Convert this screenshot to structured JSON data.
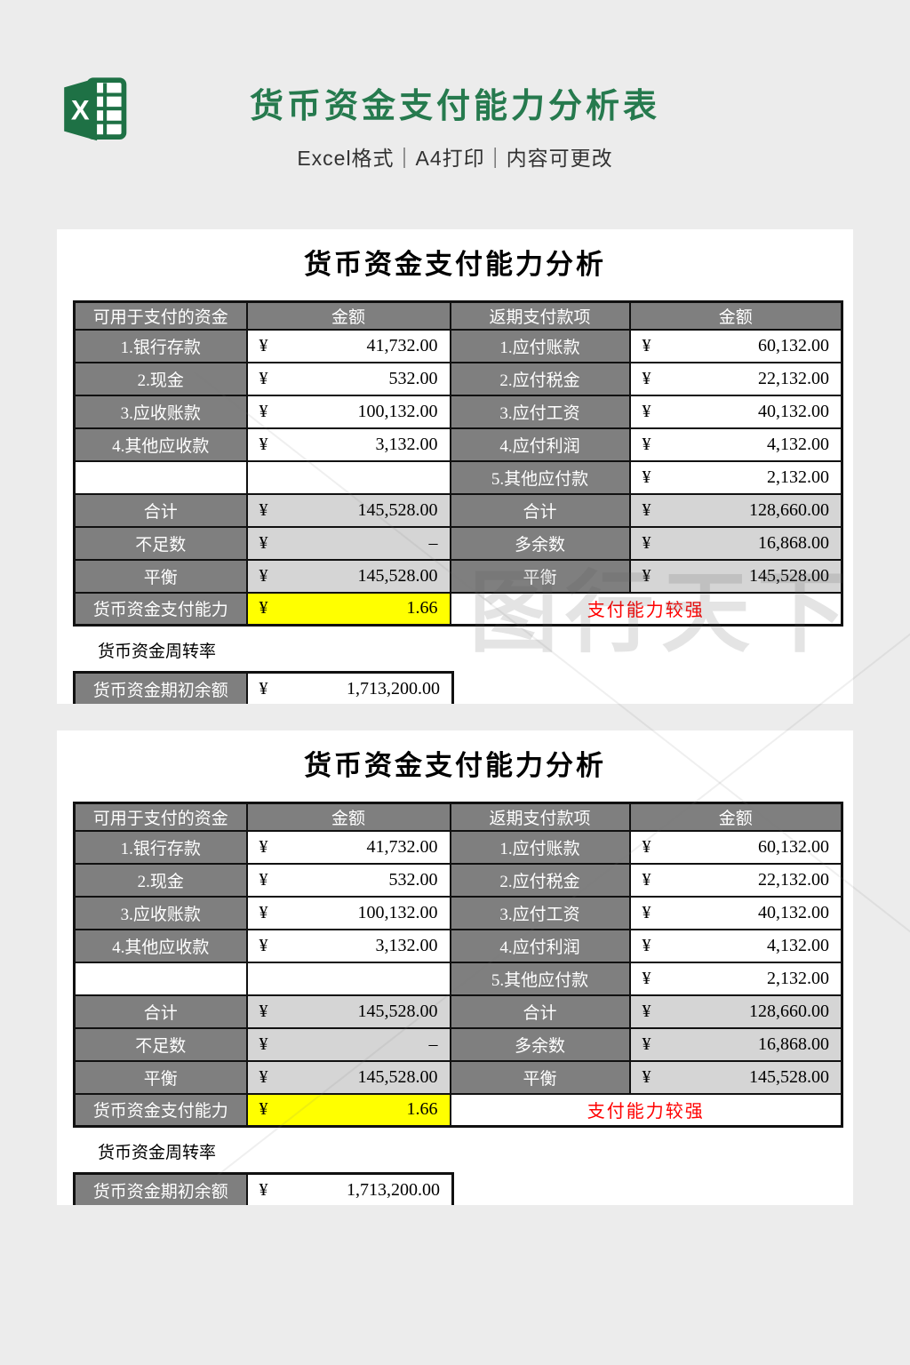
{
  "header": {
    "title": "货币资金支付能力分析表",
    "subtitle": "Excel格式｜A4打印｜内容可更改"
  },
  "watermark": {
    "text": "图行天下"
  },
  "panel": {
    "title": "货币资金支付能力分析",
    "currency": "¥",
    "columns": [
      "可用于支付的资金",
      "金额",
      "返期支付款项",
      "金额"
    ],
    "rows": [
      {
        "left_label": "1.银行存款",
        "left_amount": "41,732.00",
        "right_label": "1.应付账款",
        "right_amount": "60,132.00"
      },
      {
        "left_label": "2.现金",
        "left_amount": "532.00",
        "right_label": "2.应付税金",
        "right_amount": "22,132.00"
      },
      {
        "left_label": "3.应收账款",
        "left_amount": "100,132.00",
        "right_label": "3.应付工资",
        "right_amount": "40,132.00"
      },
      {
        "left_label": "4.其他应收款",
        "left_amount": "3,132.00",
        "right_label": "4.应付利润",
        "right_amount": "4,132.00"
      },
      {
        "left_label": "",
        "left_amount": "",
        "right_label": "5.其他应付款",
        "right_amount": "2,132.00"
      }
    ],
    "summary_rows": [
      {
        "left_label": "合计",
        "left_amount": "145,528.00",
        "right_label": "合计",
        "right_amount": "128,660.00"
      },
      {
        "left_label": "不足数",
        "left_amount": "–",
        "right_label": "多余数",
        "right_amount": "16,868.00"
      },
      {
        "left_label": "平衡",
        "left_amount": "145,528.00",
        "right_label": "平衡",
        "right_amount": "145,528.00"
      }
    ],
    "ability_row": {
      "label": "货币资金支付能力",
      "amount": "1.66",
      "status": "支付能力较强"
    },
    "turnover_title": "货币资金周转率",
    "turnover_row": {
      "label": "货币资金期初余额",
      "amount": "1,713,200.00"
    }
  },
  "colors": {
    "brand_green": "#267a4e",
    "header_gray": "#7f7f7f",
    "subtotal_gray": "#d5d5d5",
    "highlight_yellow": "#ffff00",
    "status_red": "#ff0000"
  }
}
